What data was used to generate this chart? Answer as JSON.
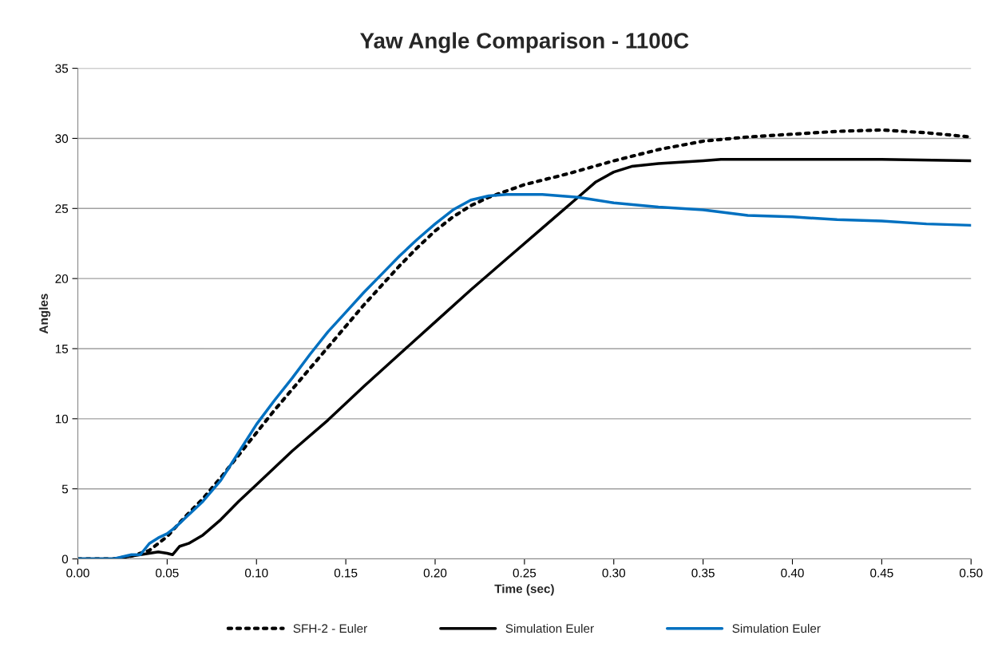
{
  "chart_data": {
    "type": "line",
    "title": "Yaw Angle Comparison - 1100C",
    "xlabel": "Time (sec)",
    "ylabel": "Angles",
    "xlim": [
      0,
      0.5
    ],
    "xticks": [
      {
        "value": 0,
        "label": "0.00"
      },
      {
        "value": 0.05,
        "label": "0.05"
      },
      {
        "value": 0.1,
        "label": "0.10"
      },
      {
        "value": 0.15,
        "label": "0.15"
      },
      {
        "value": 0.2,
        "label": "0.20"
      },
      {
        "value": 0.25,
        "label": "0.25"
      },
      {
        "value": 0.3,
        "label": "0.30"
      },
      {
        "value": 0.35,
        "label": "0.35"
      },
      {
        "value": 0.4,
        "label": "0.40"
      },
      {
        "value": 0.45,
        "label": "0.45"
      },
      {
        "value": 0.5,
        "label": "0.50"
      }
    ],
    "ylim": [
      0,
      35
    ],
    "yticks": [
      0,
      5,
      10,
      15,
      20,
      25,
      30,
      35
    ],
    "grid": "y",
    "legend": "bottom",
    "marker": "none",
    "series": [
      {
        "name": "SFH-2 - Euler",
        "color": "#000000",
        "line_style": "dotted",
        "x": [
          0,
          0.02,
          0.03,
          0.04,
          0.05,
          0.06,
          0.07,
          0.08,
          0.09,
          0.1,
          0.11,
          0.12,
          0.13,
          0.14,
          0.15,
          0.16,
          0.17,
          0.18,
          0.19,
          0.2,
          0.21,
          0.22,
          0.23,
          0.25,
          0.275,
          0.3,
          0.325,
          0.35,
          0.375,
          0.4,
          0.425,
          0.45,
          0.475,
          0.5
        ],
        "values": [
          0,
          0,
          0.2,
          0.6,
          1.6,
          3,
          4.3,
          5.8,
          7.4,
          9,
          10.6,
          12.1,
          13.6,
          15.1,
          16.6,
          18.1,
          19.5,
          20.9,
          22.2,
          23.4,
          24.4,
          25.2,
          25.8,
          26.7,
          27.5,
          28.4,
          29.2,
          29.8,
          30.1,
          30.3,
          30.5,
          30.6,
          30.4,
          30.1
        ]
      },
      {
        "name": "Simulation Euler",
        "color": "#000000",
        "line_style": "solid",
        "x": [
          0,
          0.02,
          0.03,
          0.04,
          0.045,
          0.05,
          0.053,
          0.057,
          0.062,
          0.07,
          0.08,
          0.09,
          0.1,
          0.12,
          0.14,
          0.16,
          0.18,
          0.2,
          0.22,
          0.24,
          0.26,
          0.28,
          0.29,
          0.3,
          0.31,
          0.325,
          0.35,
          0.36,
          0.4,
          0.45,
          0.5
        ],
        "values": [
          0,
          0,
          0.2,
          0.4,
          0.5,
          0.4,
          0.3,
          0.9,
          1.1,
          1.7,
          2.8,
          4.1,
          5.3,
          7.7,
          9.9,
          12.3,
          14.6,
          16.9,
          19.2,
          21.4,
          23.6,
          25.8,
          26.9,
          27.6,
          28,
          28.2,
          28.4,
          28.5,
          28.5,
          28.5,
          28.4
        ]
      },
      {
        "name": "Simulation Euler",
        "color": "#0070c0",
        "line_style": "solid",
        "x": [
          0,
          0.02,
          0.03,
          0.035,
          0.04,
          0.045,
          0.05,
          0.055,
          0.06,
          0.07,
          0.08,
          0.09,
          0.1,
          0.11,
          0.12,
          0.13,
          0.14,
          0.15,
          0.16,
          0.17,
          0.18,
          0.19,
          0.2,
          0.21,
          0.22,
          0.23,
          0.24,
          0.26,
          0.27,
          0.28,
          0.3,
          0.325,
          0.35,
          0.375,
          0.4,
          0.425,
          0.45,
          0.475,
          0.5
        ],
        "values": [
          0,
          0,
          0.3,
          0.3,
          1.1,
          1.5,
          1.8,
          2.3,
          2.9,
          4.1,
          5.6,
          7.6,
          9.6,
          11.3,
          12.9,
          14.6,
          16.2,
          17.6,
          19,
          20.3,
          21.6,
          22.8,
          23.9,
          24.9,
          25.6,
          25.9,
          26,
          26,
          25.9,
          25.8,
          25.4,
          25.1,
          24.9,
          24.5,
          24.4,
          24.2,
          24.1,
          23.9,
          23.8
        ]
      }
    ]
  }
}
